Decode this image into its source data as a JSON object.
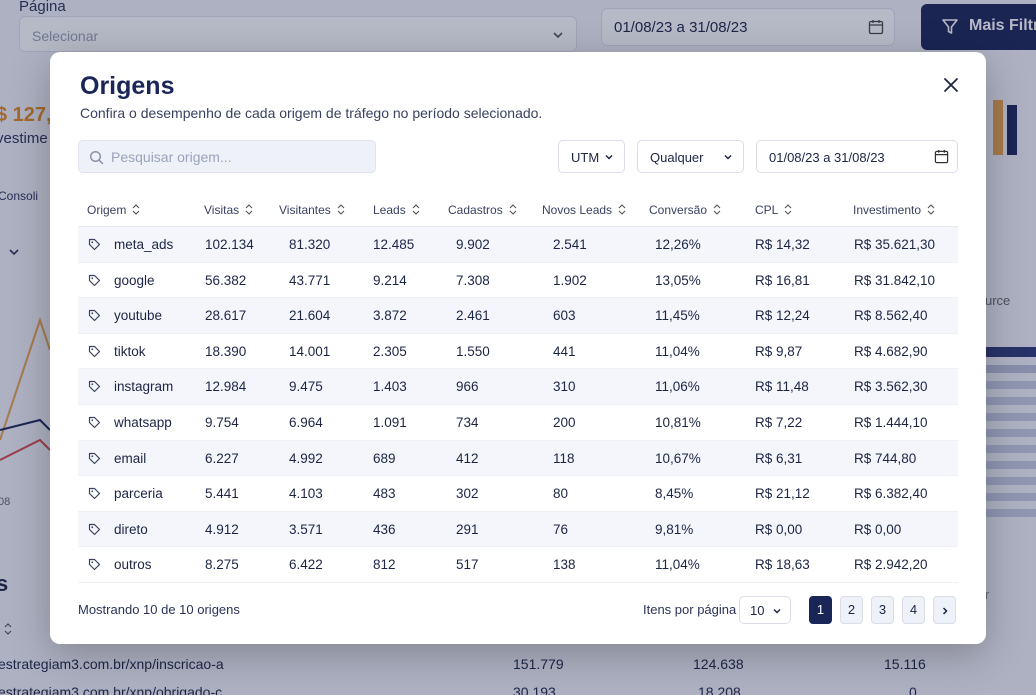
{
  "background": {
    "page_label": "Página",
    "page_select_placeholder": "Selecionar",
    "date_range": "01/08/23 a 31/08/23",
    "filters_button": "Mais Filtr",
    "kpi_value": "$ 127,",
    "kpi_label": "vestime",
    "tab_label": "Consoli",
    "axis_label": "08",
    "section_title": "s",
    "right_label": "urce",
    "rows": [
      {
        "url": "estrategiam3.com.br/xnp/inscricao-a",
        "v1": "151.779",
        "v2": "124.638",
        "v3": "15.116"
      },
      {
        "url": "estrategiam3.com.br/xnp/obrigado-c",
        "v1": "30.193",
        "v2": "18.208",
        "v3": "0"
      }
    ],
    "pager_text": "r"
  },
  "modal": {
    "title": "Origens",
    "subtitle": "Confira o desempenho de cada origem de tráfego no período selecionado.",
    "search_placeholder": "Pesquisar origem...",
    "filters": {
      "utm": "UTM",
      "any": "Qualquer",
      "date": "01/08/23 a 31/08/23"
    },
    "columns": [
      "Origem",
      "Visitas",
      "Visitantes",
      "Leads",
      "Cadastros",
      "Novos Leads",
      "Conversão",
      "CPL",
      "Investimento"
    ],
    "rows": [
      {
        "origem": "meta_ads",
        "visitas": "102.134",
        "visitantes": "81.320",
        "leads": "12.485",
        "cadastros": "9.902",
        "novos": "2.541",
        "conversao": "12,26%",
        "cpl": "R$ 14,32",
        "investimento": "R$ 35.621,30"
      },
      {
        "origem": "google",
        "visitas": "56.382",
        "visitantes": "43.771",
        "leads": "9.214",
        "cadastros": "7.308",
        "novos": "1.902",
        "conversao": "13,05%",
        "cpl": "R$ 16,81",
        "investimento": "R$ 31.842,10"
      },
      {
        "origem": "youtube",
        "visitas": "28.617",
        "visitantes": "21.604",
        "leads": "3.872",
        "cadastros": "2.461",
        "novos": "603",
        "conversao": "11,45%",
        "cpl": "R$ 12,24",
        "investimento": "R$ 8.562,40"
      },
      {
        "origem": "tiktok",
        "visitas": "18.390",
        "visitantes": "14.001",
        "leads": "2.305",
        "cadastros": "1.550",
        "novos": "441",
        "conversao": "11,04%",
        "cpl": "R$ 9,87",
        "investimento": "R$ 4.682,90"
      },
      {
        "origem": "instagram",
        "visitas": "12.984",
        "visitantes": "9.475",
        "leads": "1.403",
        "cadastros": "966",
        "novos": "310",
        "conversao": "11,06%",
        "cpl": "R$ 11,48",
        "investimento": "R$ 3.562,30"
      },
      {
        "origem": "whatsapp",
        "visitas": "9.754",
        "visitantes": "6.964",
        "leads": "1.091",
        "cadastros": "734",
        "novos": "200",
        "conversao": "10,81%",
        "cpl": "R$ 7,22",
        "investimento": "R$ 1.444,10"
      },
      {
        "origem": "email",
        "visitas": "6.227",
        "visitantes": "4.992",
        "leads": "689",
        "cadastros": "412",
        "novos": "118",
        "conversao": "10,67%",
        "cpl": "R$ 6,31",
        "investimento": "R$ 744,80"
      },
      {
        "origem": "parceria",
        "visitas": "5.441",
        "visitantes": "4.103",
        "leads": "483",
        "cadastros": "302",
        "novos": "80",
        "conversao": "8,45%",
        "cpl": "R$ 21,12",
        "investimento": "R$ 6.382,40"
      },
      {
        "origem": "direto",
        "visitas": "4.912",
        "visitantes": "3.571",
        "leads": "436",
        "cadastros": "291",
        "novos": "76",
        "conversao": "9,81%",
        "cpl": "R$ 0,00",
        "investimento": "R$ 0,00"
      },
      {
        "origem": "outros",
        "visitas": "8.275",
        "visitantes": "6.422",
        "leads": "812",
        "cadastros": "517",
        "novos": "138",
        "conversao": "11,04%",
        "cpl": "R$ 18,63",
        "investimento": "R$ 2.942,20"
      }
    ],
    "footer": {
      "showing": "Mostrando 10 de 10 origens",
      "per_page_label": "Itens por página",
      "per_page_value": "10",
      "pages": [
        "1",
        "2",
        "3",
        "4"
      ],
      "next_icon": "chevron-right-icon"
    }
  },
  "colors": {
    "brand": "#1a2558",
    "accent_orange": "#e08a1e",
    "row_alt": "#f4f6fb"
  }
}
